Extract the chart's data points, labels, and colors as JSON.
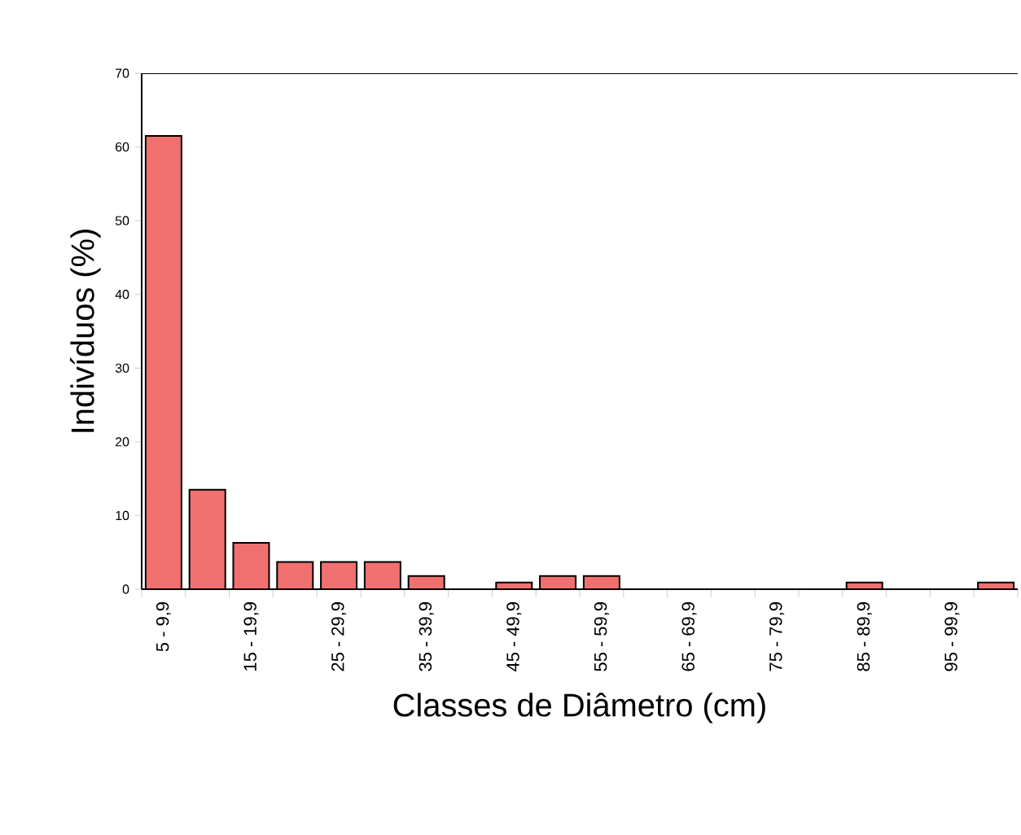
{
  "chart_data": {
    "type": "bar",
    "xlabel": "Classes de Diâmetro (cm)",
    "ylabel": "Indivíduos (%)",
    "categories": [
      "5 - 9,9",
      null,
      "15 - 19,9",
      null,
      "25 - 29,9",
      null,
      "35 - 39,9",
      null,
      "45 - 49,9",
      null,
      "55 - 59,9",
      null,
      "65 - 69,9",
      null,
      "75 - 79,9",
      null,
      "85 - 89,9",
      null,
      "95 - 99,9",
      null
    ],
    "values": [
      61.5,
      13.5,
      6.3,
      3.7,
      3.7,
      3.7,
      1.8,
      0,
      0.9,
      1.8,
      1.8,
      0,
      0,
      0,
      0,
      0,
      0.9,
      0,
      0,
      0.9
    ],
    "color": "#f07070",
    "ylim": [
      0,
      70
    ],
    "yticks": [
      0,
      10,
      20,
      30,
      40,
      50,
      60,
      70
    ],
    "grid": false
  }
}
